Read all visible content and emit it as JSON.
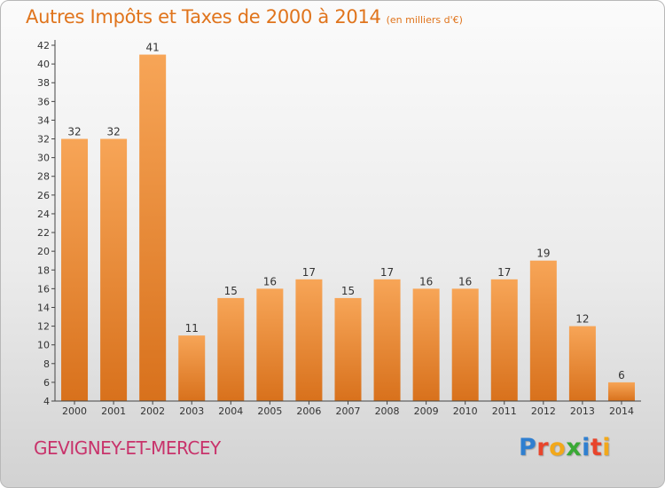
{
  "header": {
    "title": "Autres Impôts et Taxes de 2000 à 2014",
    "unit": "(en milliers d'€)"
  },
  "footer": {
    "commune": "GEVIGNEY-ET-MERCEY",
    "logo_text": "Proxiti",
    "logo_colors": [
      "#2f7fd0",
      "#e8452c",
      "#f2a81a",
      "#39a935",
      "#2f7fd0",
      "#e8452c",
      "#f2a81a"
    ]
  },
  "chart_data": {
    "type": "bar",
    "title": "Autres Impôts et Taxes de 2000 à 2014",
    "subtitle": "(en milliers d'€)",
    "xlabel": "",
    "ylabel": "",
    "categories": [
      "2000",
      "2001",
      "2002",
      "2003",
      "2004",
      "2005",
      "2006",
      "2007",
      "2008",
      "2009",
      "2010",
      "2011",
      "2012",
      "2013",
      "2014"
    ],
    "values": [
      32,
      32,
      41,
      11,
      15,
      16,
      17,
      15,
      17,
      16,
      16,
      17,
      19,
      12,
      6
    ],
    "ylim": [
      4,
      42
    ],
    "yticks": [
      4,
      6,
      8,
      10,
      12,
      14,
      16,
      18,
      20,
      22,
      24,
      26,
      28,
      30,
      32,
      34,
      36,
      38,
      40,
      42
    ],
    "grid": false,
    "bar_color": "#f0943c",
    "legend": "none"
  }
}
